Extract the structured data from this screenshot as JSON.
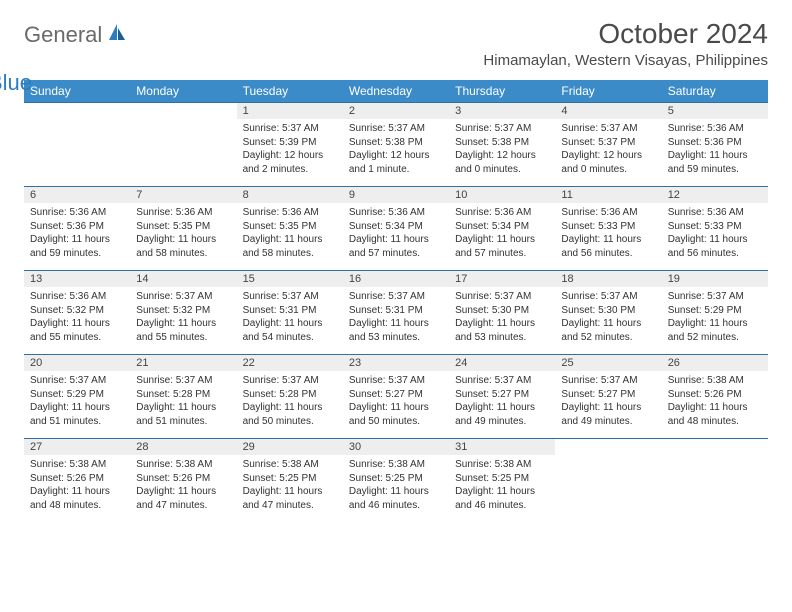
{
  "logo": {
    "word1": "General",
    "word2": "Blue"
  },
  "title": "October 2024",
  "location": "Himamaylan, Western Visayas, Philippines",
  "styling": {
    "page_bg": "#ffffff",
    "header_bg": "#3b8bc9",
    "header_text": "#ffffff",
    "daynum_bg": "#eeeeee",
    "row_border": "#2f6fa3",
    "text_color": "#333333",
    "title_fontsize": 28,
    "location_fontsize": 15,
    "dayheader_fontsize": 12,
    "daynum_fontsize": 11,
    "body_fontsize": 10
  },
  "day_headers": [
    "Sunday",
    "Monday",
    "Tuesday",
    "Wednesday",
    "Thursday",
    "Friday",
    "Saturday"
  ],
  "weeks": [
    [
      {
        "n": "",
        "sr": "",
        "ss": "",
        "dl": ""
      },
      {
        "n": "",
        "sr": "",
        "ss": "",
        "dl": ""
      },
      {
        "n": "1",
        "sr": "Sunrise: 5:37 AM",
        "ss": "Sunset: 5:39 PM",
        "dl": "Daylight: 12 hours and 2 minutes."
      },
      {
        "n": "2",
        "sr": "Sunrise: 5:37 AM",
        "ss": "Sunset: 5:38 PM",
        "dl": "Daylight: 12 hours and 1 minute."
      },
      {
        "n": "3",
        "sr": "Sunrise: 5:37 AM",
        "ss": "Sunset: 5:38 PM",
        "dl": "Daylight: 12 hours and 0 minutes."
      },
      {
        "n": "4",
        "sr": "Sunrise: 5:37 AM",
        "ss": "Sunset: 5:37 PM",
        "dl": "Daylight: 12 hours and 0 minutes."
      },
      {
        "n": "5",
        "sr": "Sunrise: 5:36 AM",
        "ss": "Sunset: 5:36 PM",
        "dl": "Daylight: 11 hours and 59 minutes."
      }
    ],
    [
      {
        "n": "6",
        "sr": "Sunrise: 5:36 AM",
        "ss": "Sunset: 5:36 PM",
        "dl": "Daylight: 11 hours and 59 minutes."
      },
      {
        "n": "7",
        "sr": "Sunrise: 5:36 AM",
        "ss": "Sunset: 5:35 PM",
        "dl": "Daylight: 11 hours and 58 minutes."
      },
      {
        "n": "8",
        "sr": "Sunrise: 5:36 AM",
        "ss": "Sunset: 5:35 PM",
        "dl": "Daylight: 11 hours and 58 minutes."
      },
      {
        "n": "9",
        "sr": "Sunrise: 5:36 AM",
        "ss": "Sunset: 5:34 PM",
        "dl": "Daylight: 11 hours and 57 minutes."
      },
      {
        "n": "10",
        "sr": "Sunrise: 5:36 AM",
        "ss": "Sunset: 5:34 PM",
        "dl": "Daylight: 11 hours and 57 minutes."
      },
      {
        "n": "11",
        "sr": "Sunrise: 5:36 AM",
        "ss": "Sunset: 5:33 PM",
        "dl": "Daylight: 11 hours and 56 minutes."
      },
      {
        "n": "12",
        "sr": "Sunrise: 5:36 AM",
        "ss": "Sunset: 5:33 PM",
        "dl": "Daylight: 11 hours and 56 minutes."
      }
    ],
    [
      {
        "n": "13",
        "sr": "Sunrise: 5:36 AM",
        "ss": "Sunset: 5:32 PM",
        "dl": "Daylight: 11 hours and 55 minutes."
      },
      {
        "n": "14",
        "sr": "Sunrise: 5:37 AM",
        "ss": "Sunset: 5:32 PM",
        "dl": "Daylight: 11 hours and 55 minutes."
      },
      {
        "n": "15",
        "sr": "Sunrise: 5:37 AM",
        "ss": "Sunset: 5:31 PM",
        "dl": "Daylight: 11 hours and 54 minutes."
      },
      {
        "n": "16",
        "sr": "Sunrise: 5:37 AM",
        "ss": "Sunset: 5:31 PM",
        "dl": "Daylight: 11 hours and 53 minutes."
      },
      {
        "n": "17",
        "sr": "Sunrise: 5:37 AM",
        "ss": "Sunset: 5:30 PM",
        "dl": "Daylight: 11 hours and 53 minutes."
      },
      {
        "n": "18",
        "sr": "Sunrise: 5:37 AM",
        "ss": "Sunset: 5:30 PM",
        "dl": "Daylight: 11 hours and 52 minutes."
      },
      {
        "n": "19",
        "sr": "Sunrise: 5:37 AM",
        "ss": "Sunset: 5:29 PM",
        "dl": "Daylight: 11 hours and 52 minutes."
      }
    ],
    [
      {
        "n": "20",
        "sr": "Sunrise: 5:37 AM",
        "ss": "Sunset: 5:29 PM",
        "dl": "Daylight: 11 hours and 51 minutes."
      },
      {
        "n": "21",
        "sr": "Sunrise: 5:37 AM",
        "ss": "Sunset: 5:28 PM",
        "dl": "Daylight: 11 hours and 51 minutes."
      },
      {
        "n": "22",
        "sr": "Sunrise: 5:37 AM",
        "ss": "Sunset: 5:28 PM",
        "dl": "Daylight: 11 hours and 50 minutes."
      },
      {
        "n": "23",
        "sr": "Sunrise: 5:37 AM",
        "ss": "Sunset: 5:27 PM",
        "dl": "Daylight: 11 hours and 50 minutes."
      },
      {
        "n": "24",
        "sr": "Sunrise: 5:37 AM",
        "ss": "Sunset: 5:27 PM",
        "dl": "Daylight: 11 hours and 49 minutes."
      },
      {
        "n": "25",
        "sr": "Sunrise: 5:37 AM",
        "ss": "Sunset: 5:27 PM",
        "dl": "Daylight: 11 hours and 49 minutes."
      },
      {
        "n": "26",
        "sr": "Sunrise: 5:38 AM",
        "ss": "Sunset: 5:26 PM",
        "dl": "Daylight: 11 hours and 48 minutes."
      }
    ],
    [
      {
        "n": "27",
        "sr": "Sunrise: 5:38 AM",
        "ss": "Sunset: 5:26 PM",
        "dl": "Daylight: 11 hours and 48 minutes."
      },
      {
        "n": "28",
        "sr": "Sunrise: 5:38 AM",
        "ss": "Sunset: 5:26 PM",
        "dl": "Daylight: 11 hours and 47 minutes."
      },
      {
        "n": "29",
        "sr": "Sunrise: 5:38 AM",
        "ss": "Sunset: 5:25 PM",
        "dl": "Daylight: 11 hours and 47 minutes."
      },
      {
        "n": "30",
        "sr": "Sunrise: 5:38 AM",
        "ss": "Sunset: 5:25 PM",
        "dl": "Daylight: 11 hours and 46 minutes."
      },
      {
        "n": "31",
        "sr": "Sunrise: 5:38 AM",
        "ss": "Sunset: 5:25 PM",
        "dl": "Daylight: 11 hours and 46 minutes."
      },
      {
        "n": "",
        "sr": "",
        "ss": "",
        "dl": ""
      },
      {
        "n": "",
        "sr": "",
        "ss": "",
        "dl": ""
      }
    ]
  ]
}
